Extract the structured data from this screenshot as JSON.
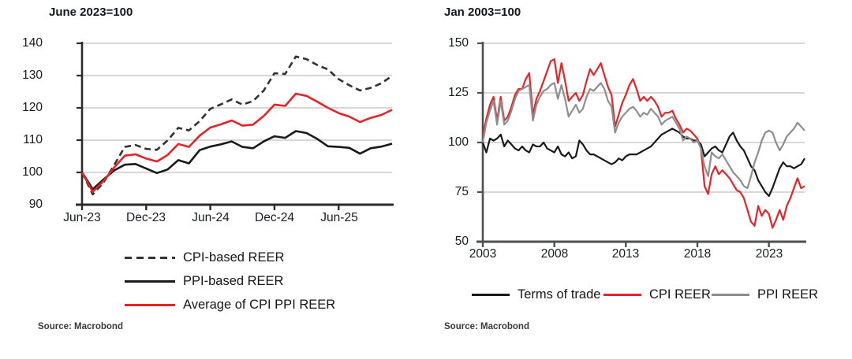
{
  "page": {
    "background": "#ffffff"
  },
  "colors": {
    "red": "#e82328",
    "black_line": "#1a1a1a",
    "dashed_dark": "#333333",
    "gray_line": "#8e8e8e",
    "gridline": "#cbcbcb",
    "axis_left_chart": "#2b2b2b",
    "axis_right_chart": "#4f4f4f"
  },
  "chart_data": [
    {
      "type": "line",
      "title": "June 2023=100",
      "source": "Source: Macrobond",
      "x_unit": "months since Jun-2023, monthly points Jun-23 to Nov-25",
      "xlim": [
        0,
        29
      ],
      "ylim": [
        90,
        140
      ],
      "y_ticks": [
        140,
        130,
        120,
        110,
        100,
        90
      ],
      "gridlines": [
        140,
        130,
        120,
        110,
        100
      ],
      "x_tick_labels": [
        "Jun-23",
        "Dec-23",
        "Jun-24",
        "Dec-24",
        "Jun-25"
      ],
      "x_tick_positions": [
        0,
        6,
        12,
        18,
        24
      ],
      "grid_on": true,
      "legend_position": "below",
      "series": [
        {
          "name": "CPI-based REER",
          "color": "#333333",
          "dash": true,
          "values": [
            100,
            93.2,
            96.8,
            102.3,
            107.9,
            108.5,
            107.3,
            107,
            109.9,
            113.8,
            113,
            115.9,
            119.7,
            121.1,
            122.6,
            121,
            122.1,
            125.4,
            130.7,
            130.5,
            135.9,
            135.1,
            133.3,
            131.9,
            128.9,
            127,
            125.4,
            126.2,
            127.6,
            129.9
          ]
        },
        {
          "name": "PPI-based REER",
          "color": "#1a1a1a",
          "dash": false,
          "values": [
            100,
            94.8,
            97.8,
            100.6,
            102.4,
            102.6,
            101.2,
            99.8,
            100.9,
            103.8,
            102.8,
            106.9,
            108,
            108.7,
            109.6,
            107.9,
            107.5,
            109.6,
            111.2,
            110.7,
            112.8,
            112.2,
            110.4,
            108.1,
            107.9,
            107.6,
            105.8,
            107.5,
            108,
            108.9
          ]
        },
        {
          "name": "Average of CPI PPI REER",
          "color": "#e82328",
          "dash": false,
          "values": [
            100,
            94,
            97.3,
            101.5,
            105.2,
            105.6,
            104.3,
            103.4,
            105.4,
            108.8,
            107.9,
            111.4,
            113.9,
            114.9,
            116.1,
            114.5,
            114.8,
            117.5,
            121,
            120.6,
            124.4,
            123.7,
            121.9,
            120,
            118.4,
            117.3,
            115.6,
            116.9,
            117.8,
            119.4
          ]
        }
      ]
    },
    {
      "type": "line",
      "title": "Jan 2003=100",
      "source": "Source: Macrobond",
      "x_unit": "year, quarterly points 2003.0 to 2025.5",
      "xlim": [
        2003,
        2025.5
      ],
      "ylim": [
        50,
        150
      ],
      "y_ticks": [
        150,
        125,
        100,
        75,
        50
      ],
      "gridlines": [
        150,
        125,
        100,
        75
      ],
      "x_tick_labels": [
        "2003",
        "2008",
        "2013",
        "2018",
        "2023"
      ],
      "x_tick_positions": [
        2003,
        2008,
        2013,
        2018,
        2023
      ],
      "grid_on": true,
      "legend_position": "below",
      "series": [
        {
          "name": "Terms of trade",
          "color": "#1a1a1a",
          "dash": false,
          "values": [
            100,
            95,
            102,
            101,
            102,
            104,
            98,
            101,
            99,
            97,
            96,
            98,
            96,
            95,
            99,
            98,
            98,
            100,
            97,
            96,
            95,
            98,
            94,
            93,
            95,
            92,
            93,
            101,
            99,
            96,
            94,
            94,
            93,
            92,
            91,
            90,
            89,
            90,
            92,
            91,
            93,
            94,
            94,
            94,
            95,
            96,
            97,
            98,
            100,
            102,
            104,
            105,
            106,
            107,
            106,
            105,
            103,
            102,
            102,
            101,
            101,
            99,
            93,
            95,
            97,
            98,
            96,
            95,
            99,
            103,
            105,
            101,
            98,
            96,
            92,
            88,
            86,
            81,
            78,
            75,
            73,
            77,
            82,
            87,
            90,
            88,
            88,
            87,
            88,
            89,
            92
          ]
        },
        {
          "name": "CPI REER",
          "color": "#e82328",
          "dash": false,
          "values": [
            103,
            112,
            119,
            123,
            111,
            123,
            111,
            113,
            118,
            124,
            127,
            127,
            132,
            135,
            114,
            122,
            126,
            131,
            136,
            141,
            142,
            130,
            140,
            131,
            121,
            123,
            125,
            121,
            124,
            131,
            137,
            134,
            137,
            140,
            134,
            128,
            124,
            108,
            114,
            120,
            124,
            129,
            132,
            127,
            121,
            123,
            121,
            123,
            121,
            118,
            113,
            115,
            115,
            116,
            112,
            109,
            105,
            107,
            106,
            104,
            102,
            97,
            78,
            74,
            84,
            88,
            84,
            86,
            84,
            82,
            79,
            76,
            75,
            72,
            66,
            60,
            58,
            68,
            63,
            66,
            64,
            57,
            61,
            66,
            61,
            68,
            72,
            77,
            82,
            77,
            78
          ]
        },
        {
          "name": "PPI REER",
          "color": "#8e8e8e",
          "dash": false,
          "values": [
            100,
            110,
            116,
            121,
            109,
            121,
            109,
            111,
            116,
            122,
            126,
            127,
            128,
            129,
            111,
            119,
            123,
            126,
            127,
            129,
            130,
            122,
            129,
            122,
            113,
            116,
            119,
            115,
            117,
            123,
            127,
            126,
            128,
            130,
            127,
            121,
            118,
            105,
            110,
            113,
            115,
            117,
            118,
            116,
            113,
            115,
            114,
            117,
            115,
            113,
            109,
            111,
            112,
            113,
            110,
            107,
            101,
            103,
            102,
            100,
            101,
            97,
            88,
            83,
            95,
            93,
            92,
            94,
            91,
            88,
            85,
            83,
            81,
            78,
            77,
            83,
            90,
            95,
            101,
            105,
            106,
            105,
            100,
            96,
            99,
            103,
            105,
            107,
            110,
            108,
            106
          ]
        }
      ]
    }
  ]
}
